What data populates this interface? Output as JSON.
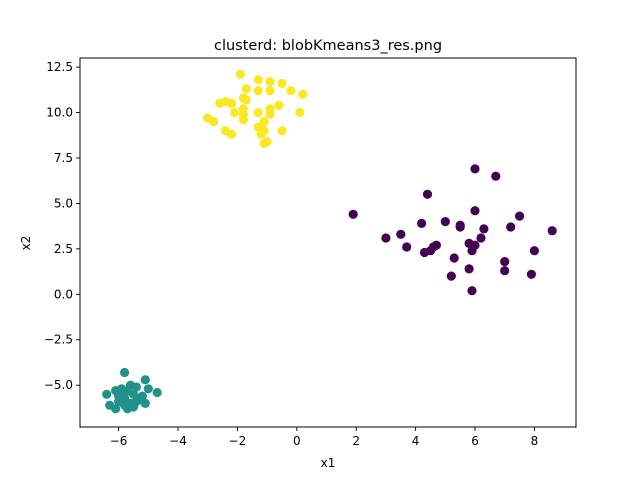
{
  "chart_data": {
    "type": "scatter",
    "title": "clusterd: blobKmeans3_res.png",
    "xlabel": "x1",
    "ylabel": "x2",
    "xlim": [
      -7.3,
      9.4
    ],
    "ylim": [
      -7.3,
      13.0
    ],
    "xticks": [
      -6,
      -4,
      -2,
      0,
      2,
      4,
      6,
      8
    ],
    "yticks": [
      -5.0,
      -2.5,
      0.0,
      2.5,
      5.0,
      7.5,
      10.0,
      12.5
    ],
    "grid": false,
    "legend": "none",
    "series": [
      {
        "color": "#440154",
        "points": [
          [
            6.0,
            6.9
          ],
          [
            6.7,
            6.5
          ],
          [
            4.4,
            5.5
          ],
          [
            6.0,
            4.6
          ],
          [
            1.9,
            4.4
          ],
          [
            7.5,
            4.3
          ],
          [
            5.0,
            4.0
          ],
          [
            4.2,
            3.9
          ],
          [
            5.5,
            3.7
          ],
          [
            5.5,
            3.8
          ],
          [
            7.2,
            3.7
          ],
          [
            6.3,
            3.6
          ],
          [
            8.6,
            3.5
          ],
          [
            3.5,
            3.3
          ],
          [
            3.0,
            3.1
          ],
          [
            6.2,
            3.1
          ],
          [
            5.8,
            2.8
          ],
          [
            6.0,
            2.7
          ],
          [
            4.7,
            2.7
          ],
          [
            4.6,
            2.6
          ],
          [
            3.7,
            2.6
          ],
          [
            5.9,
            2.4
          ],
          [
            8.0,
            2.4
          ],
          [
            4.5,
            2.4
          ],
          [
            4.3,
            2.3
          ],
          [
            5.3,
            2.0
          ],
          [
            7.0,
            1.8
          ],
          [
            5.8,
            1.4
          ],
          [
            7.0,
            1.3
          ],
          [
            5.2,
            1.0
          ],
          [
            7.9,
            1.1
          ],
          [
            5.9,
            0.2
          ]
        ]
      },
      {
        "color": "#21918c",
        "points": [
          [
            -5.8,
            -4.3
          ],
          [
            -5.1,
            -4.7
          ],
          [
            -5.6,
            -5.0
          ],
          [
            -6.1,
            -5.3
          ],
          [
            -5.4,
            -5.1
          ],
          [
            -5.0,
            -5.2
          ],
          [
            -5.7,
            -5.3
          ],
          [
            -5.9,
            -5.4
          ],
          [
            -4.7,
            -5.4
          ],
          [
            -6.0,
            -5.6
          ],
          [
            -6.4,
            -5.5
          ],
          [
            -5.5,
            -5.5
          ],
          [
            -5.2,
            -5.6
          ],
          [
            -5.8,
            -5.7
          ],
          [
            -6.0,
            -5.9
          ],
          [
            -5.4,
            -5.9
          ],
          [
            -5.6,
            -6.0
          ],
          [
            -5.1,
            -6.0
          ],
          [
            -6.3,
            -6.1
          ],
          [
            -5.8,
            -6.1
          ],
          [
            -5.5,
            -6.2
          ],
          [
            -6.1,
            -6.3
          ],
          [
            -5.7,
            -6.3
          ],
          [
            -5.9,
            -5.2
          ],
          [
            -5.3,
            -5.8
          ]
        ]
      },
      {
        "color": "#fde725",
        "points": [
          [
            -1.9,
            12.1
          ],
          [
            -1.3,
            11.8
          ],
          [
            -0.9,
            11.7
          ],
          [
            -0.5,
            11.6
          ],
          [
            -1.7,
            11.3
          ],
          [
            -1.3,
            11.2
          ],
          [
            -0.9,
            11.2
          ],
          [
            -0.2,
            11.2
          ],
          [
            0.2,
            11.0
          ],
          [
            -1.8,
            10.8
          ],
          [
            -1.7,
            10.7
          ],
          [
            -2.4,
            10.6
          ],
          [
            -2.6,
            10.5
          ],
          [
            -2.2,
            10.5
          ],
          [
            -0.6,
            10.4
          ],
          [
            -1.8,
            10.2
          ],
          [
            -0.9,
            10.2
          ],
          [
            -2.1,
            10.0
          ],
          [
            -1.3,
            10.0
          ],
          [
            -1.8,
            9.9
          ],
          [
            -0.9,
            9.9
          ],
          [
            0.1,
            10.0
          ],
          [
            -3.0,
            9.7
          ],
          [
            -2.8,
            9.5
          ],
          [
            -1.1,
            9.5
          ],
          [
            -1.8,
            9.6
          ],
          [
            -1.3,
            9.2
          ],
          [
            -1.1,
            9.0
          ],
          [
            -2.4,
            9.0
          ],
          [
            -0.5,
            9.0
          ],
          [
            -2.2,
            8.8
          ],
          [
            -1.2,
            8.8
          ],
          [
            -1.0,
            8.4
          ],
          [
            -1.1,
            8.3
          ]
        ]
      }
    ]
  }
}
